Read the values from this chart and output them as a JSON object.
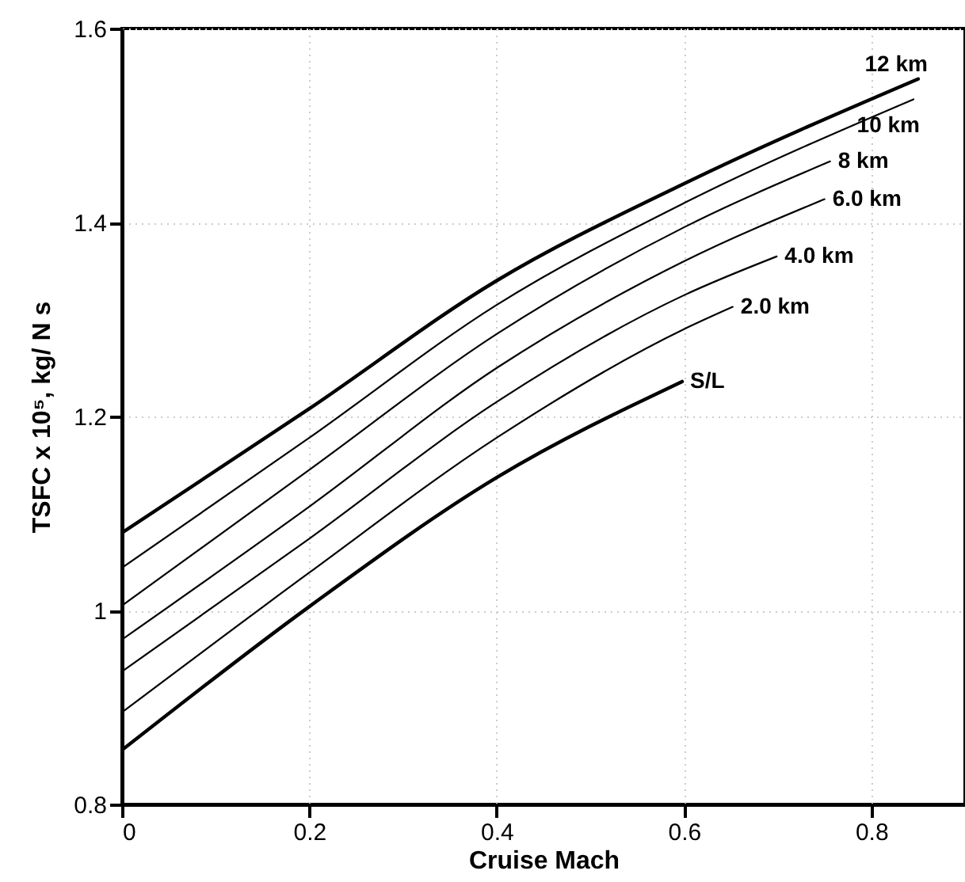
{
  "chart_data": {
    "type": "line",
    "xlabel": "Cruise Mach",
    "ylabel": "TSFC x 10⁵, kg/ N s",
    "xlim": [
      0,
      0.9
    ],
    "xticks": [
      0,
      0.2,
      0.4,
      0.6,
      0.8
    ],
    "ylim": [
      0.8,
      1.6
    ],
    "yticks": [
      0.8,
      1,
      1.2,
      1.4,
      1.6
    ],
    "grid": true,
    "series": [
      {
        "name": "12 km",
        "color": "#000000",
        "x": [
          0,
          0.2,
          0.4,
          0.6,
          0.85
        ],
        "values": [
          1.08,
          1.208,
          1.34,
          1.44,
          1.548
        ]
      },
      {
        "name": "10 km",
        "color": "#000000",
        "x": [
          0,
          0.2,
          0.4,
          0.6,
          0.845
        ],
        "values": [
          1.044,
          1.178,
          1.315,
          1.42,
          1.527
        ]
      },
      {
        "name": "8 km",
        "color": "#000000",
        "x": [
          0,
          0.2,
          0.4,
          0.6,
          0.756
        ],
        "values": [
          1.005,
          1.145,
          1.285,
          1.395,
          1.463
        ]
      },
      {
        "name": "6.0 km",
        "color": "#000000",
        "x": [
          0,
          0.2,
          0.4,
          0.6,
          0.75
        ],
        "values": [
          0.97,
          1.107,
          1.25,
          1.36,
          1.424
        ]
      },
      {
        "name": "4.0 km",
        "color": "#000000",
        "x": [
          0,
          0.2,
          0.4,
          0.6,
          0.699
        ],
        "values": [
          0.937,
          1.074,
          1.215,
          1.325,
          1.365
        ]
      },
      {
        "name": "2.0 km",
        "color": "#000000",
        "x": [
          0,
          0.2,
          0.4,
          0.6,
          0.652
        ],
        "values": [
          0.895,
          1.039,
          1.178,
          1.29,
          1.313
        ]
      },
      {
        "name": "S/L",
        "color": "#000000",
        "x": [
          0,
          0.2,
          0.4,
          0.598
        ],
        "values": [
          0.856,
          1.004,
          1.137,
          1.236
        ]
      }
    ]
  }
}
